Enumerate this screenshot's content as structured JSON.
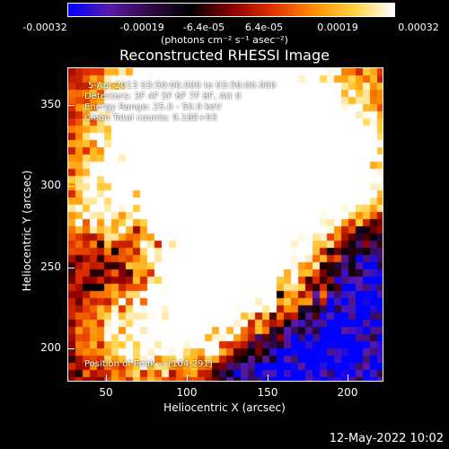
{
  "colorbar": {
    "ticks": [
      "-0.00032",
      "-0.00019",
      "-6.4e-05",
      "6.4e-05",
      "0.00019",
      "0.00032"
    ],
    "units": "(photons cm⁻² s⁻¹ asec⁻²)",
    "colors": [
      "#0000ff",
      "#5a1aa8",
      "#300848",
      "#000000",
      "#8a0000",
      "#e03000",
      "#ff8c00",
      "#ffd040",
      "#ffffff"
    ]
  },
  "title": "Reconstructed RHESSI Image",
  "annotations": {
    "time": "5-Apr-2013 03:50:00.000 to 03:56:00.000",
    "detectors": "Detectors: 3F 4F 5F 6F 7F 8F, Att 0",
    "energy": "Energy Range: 25.0 - 50.0 keV",
    "clean": "Clean     Total counts: 9.18E+03",
    "peak": "Position of Peak = [104,291]"
  },
  "axes": {
    "xlabel": "Heliocentric X (arcsec)",
    "ylabel": "Heliocentric Y (arcsec)",
    "xticks": [
      "50",
      "100",
      "150",
      "200"
    ],
    "yticks": [
      "350",
      "300",
      "250",
      "200"
    ]
  },
  "footer": {
    "date": "12-May-2022 10:02"
  }
}
